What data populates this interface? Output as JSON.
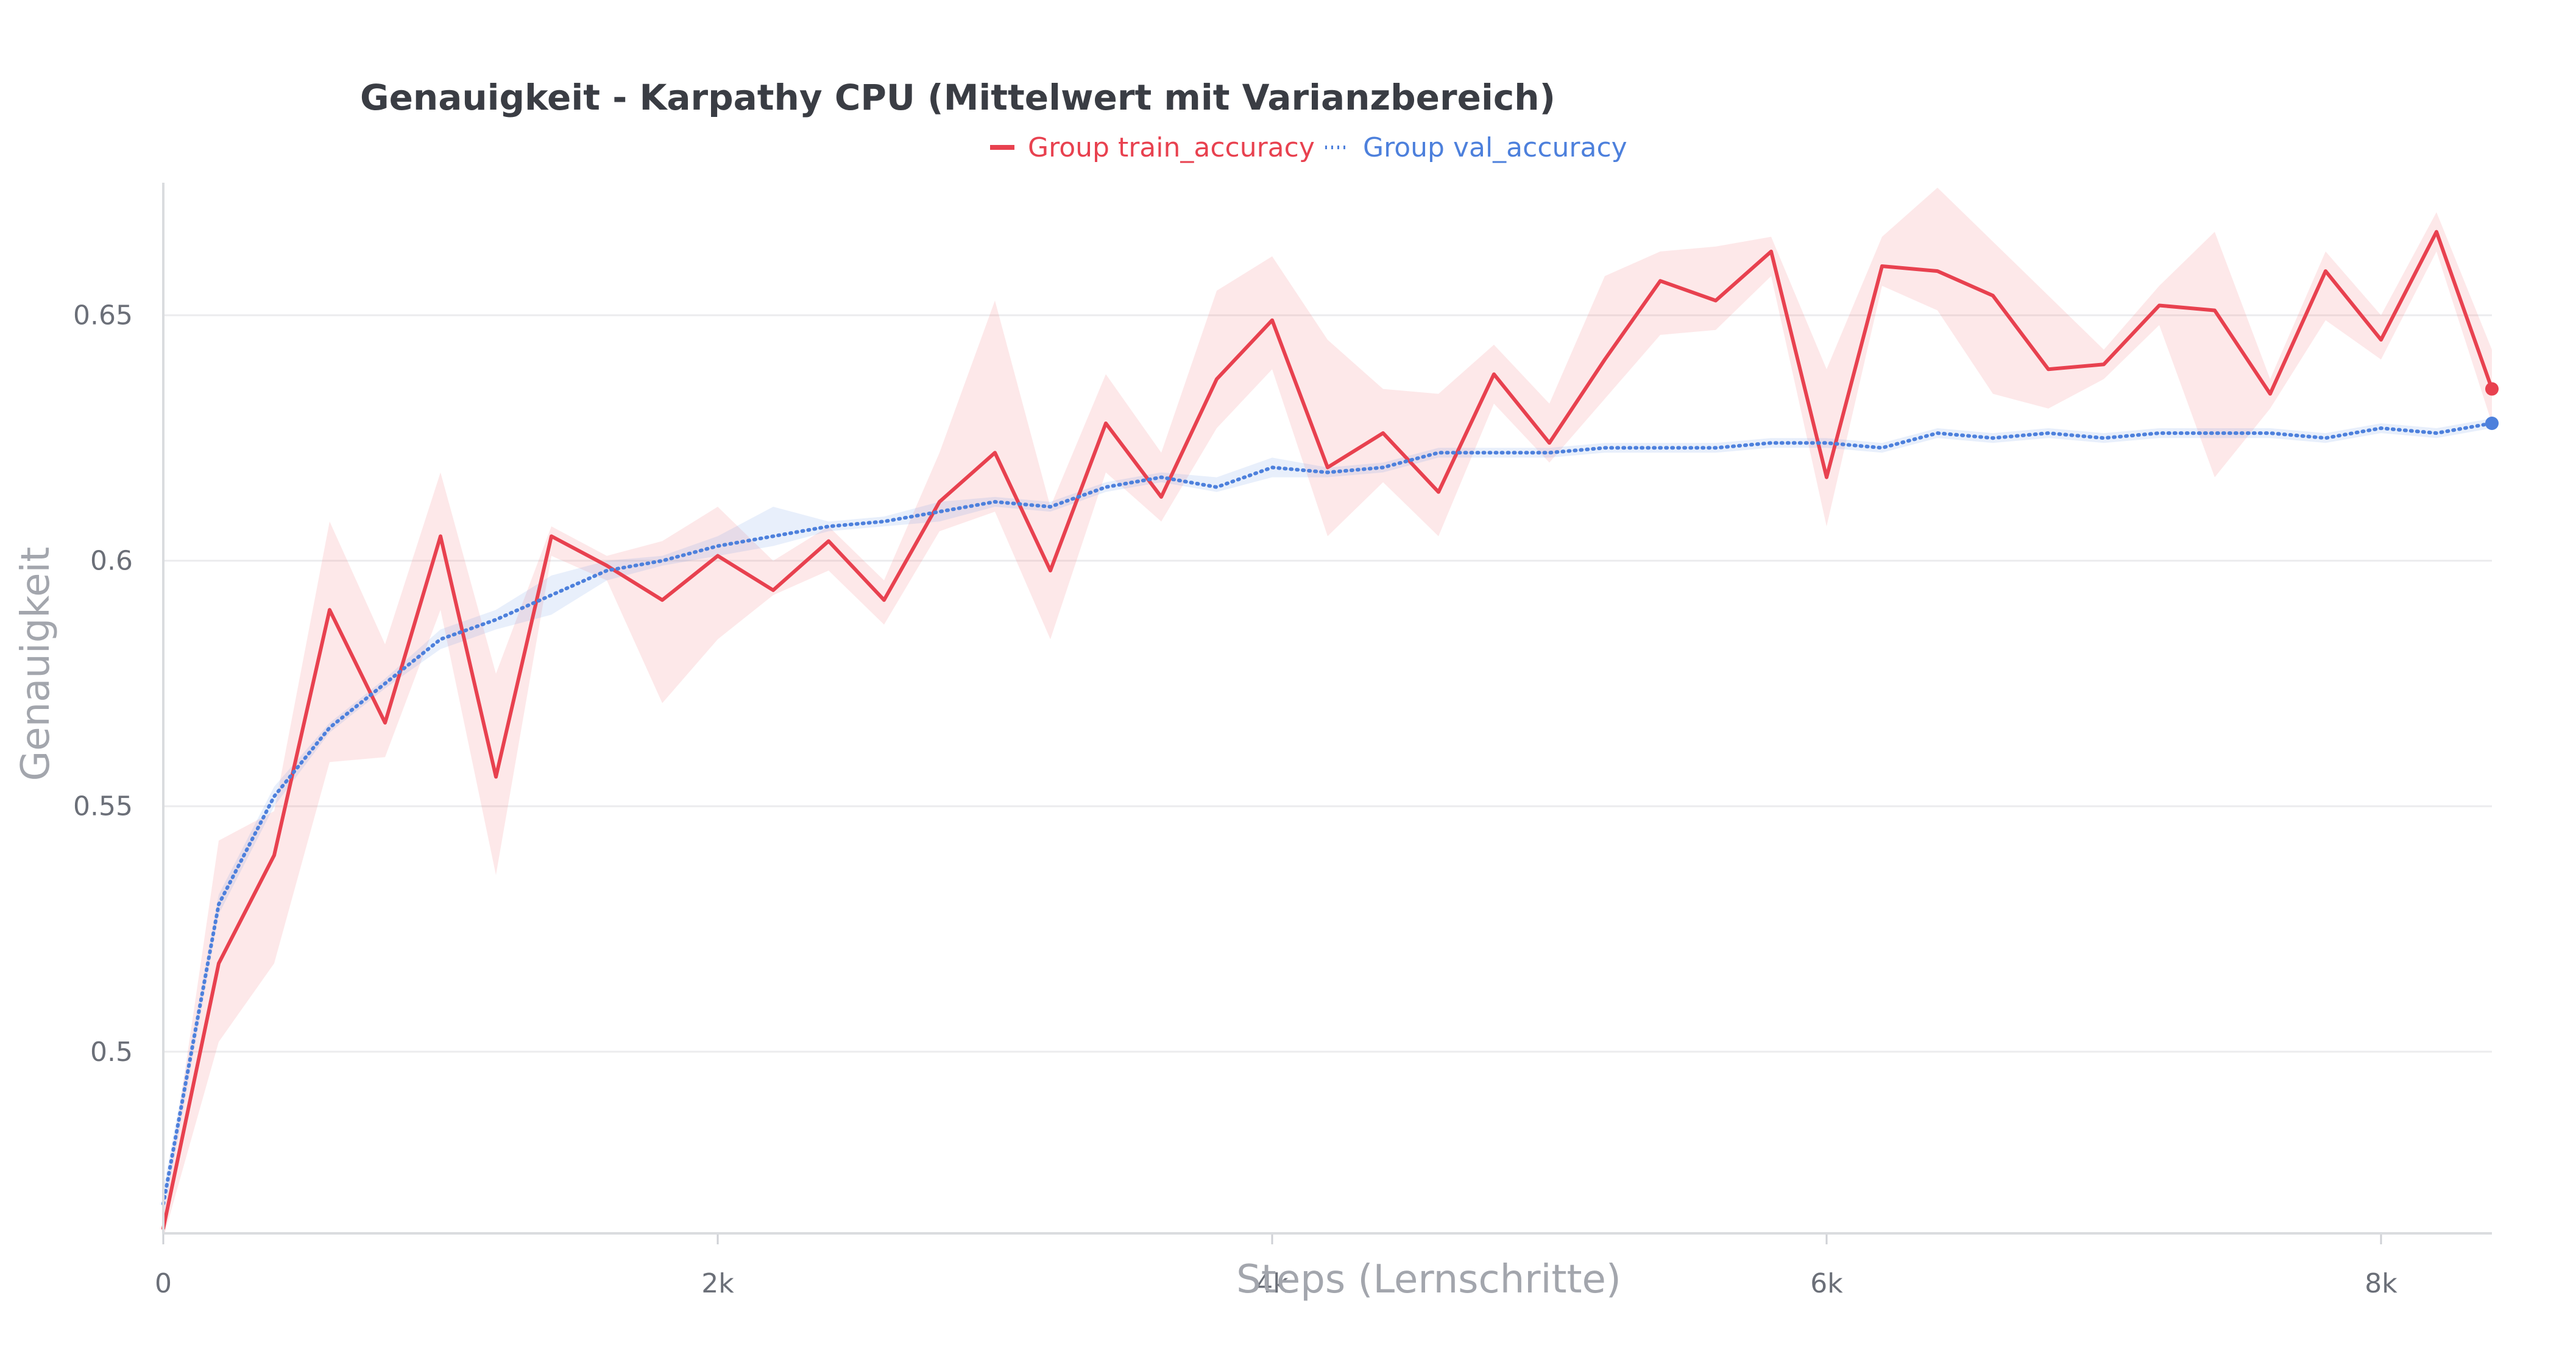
{
  "chart_data": {
    "type": "line",
    "title": "Genauigkeit - Karpathy CPU (Mittelwert mit Varianzbereich)",
    "xlabel": "Steps (Lernschritte)",
    "ylabel": "Genauigkeit",
    "xlim": [
      0,
      8400
    ],
    "ylim": [
      0.463,
      0.677
    ],
    "xticks": [
      {
        "value": 0,
        "label": "0"
      },
      {
        "value": 2000,
        "label": "2k"
      },
      {
        "value": 4000,
        "label": "4k"
      },
      {
        "value": 6000,
        "label": "6k"
      },
      {
        "value": 8000,
        "label": "8k"
      }
    ],
    "yticks": [
      {
        "value": 0.5,
        "label": "0.5"
      },
      {
        "value": 0.55,
        "label": "0.55"
      },
      {
        "value": 0.6,
        "label": "0.6"
      },
      {
        "value": 0.65,
        "label": "0.65"
      }
    ],
    "grid": "horizontal",
    "legend_position": "top-center",
    "series": [
      {
        "name": "Group train_accuracy",
        "color": "#e8414f",
        "style": "solid",
        "x": [
          0,
          200,
          400,
          600,
          800,
          1000,
          1200,
          1400,
          1600,
          1800,
          2000,
          2200,
          2400,
          2600,
          2800,
          3000,
          3200,
          3400,
          3600,
          3800,
          4000,
          4200,
          4400,
          4600,
          4800,
          5000,
          5200,
          5400,
          5600,
          5800,
          6000,
          6200,
          6400,
          6600,
          6800,
          7000,
          7200,
          7400,
          7600,
          7800,
          8000,
          8200,
          8400
        ],
        "y": [
          0.464,
          0.518,
          0.54,
          0.59,
          0.567,
          0.605,
          0.556,
          0.605,
          0.599,
          0.592,
          0.601,
          0.594,
          0.604,
          0.592,
          0.612,
          0.622,
          0.598,
          0.628,
          0.613,
          0.637,
          0.649,
          0.619,
          0.626,
          0.614,
          0.638,
          0.624,
          0.641,
          0.657,
          0.653,
          0.663,
          0.617,
          0.66,
          0.659,
          0.654,
          0.639,
          0.64,
          0.652,
          0.651,
          0.634,
          0.659,
          0.645,
          0.667,
          0.635
        ],
        "upper": [
          0.466,
          0.543,
          0.549,
          0.608,
          0.583,
          0.618,
          0.577,
          0.607,
          0.601,
          0.604,
          0.611,
          0.6,
          0.607,
          0.596,
          0.622,
          0.653,
          0.611,
          0.638,
          0.622,
          0.655,
          0.662,
          0.645,
          0.635,
          0.634,
          0.644,
          0.632,
          0.658,
          0.663,
          0.664,
          0.666,
          0.639,
          0.666,
          0.676,
          0.665,
          0.654,
          0.643,
          0.656,
          0.667,
          0.637,
          0.663,
          0.65,
          0.671,
          0.643
        ],
        "lower": [
          0.462,
          0.502,
          0.518,
          0.559,
          0.56,
          0.59,
          0.536,
          0.601,
          0.596,
          0.571,
          0.584,
          0.593,
          0.598,
          0.587,
          0.606,
          0.61,
          0.584,
          0.618,
          0.608,
          0.627,
          0.639,
          0.605,
          0.616,
          0.605,
          0.632,
          0.62,
          0.633,
          0.646,
          0.647,
          0.658,
          0.607,
          0.656,
          0.651,
          0.634,
          0.631,
          0.637,
          0.648,
          0.617,
          0.631,
          0.649,
          0.641,
          0.663,
          0.628
        ]
      },
      {
        "name": "Group val_accuracy",
        "color": "#4d80dc",
        "style": "dotted",
        "x": [
          0,
          200,
          400,
          600,
          800,
          1000,
          1200,
          1400,
          1600,
          1800,
          2000,
          2200,
          2400,
          2600,
          2800,
          3000,
          3200,
          3400,
          3600,
          3800,
          4000,
          4200,
          4400,
          4600,
          4800,
          5000,
          5200,
          5400,
          5600,
          5800,
          6000,
          6200,
          6400,
          6600,
          6800,
          7000,
          7200,
          7400,
          7600,
          7800,
          8000,
          8200,
          8400
        ],
        "y": [
          0.469,
          0.53,
          0.552,
          0.566,
          0.575,
          0.584,
          0.588,
          0.593,
          0.598,
          0.6,
          0.603,
          0.605,
          0.607,
          0.608,
          0.61,
          0.612,
          0.611,
          0.615,
          0.617,
          0.615,
          0.619,
          0.618,
          0.619,
          0.622,
          0.622,
          0.622,
          0.623,
          0.623,
          0.623,
          0.624,
          0.624,
          0.623,
          0.626,
          0.625,
          0.626,
          0.625,
          0.626,
          0.626,
          0.626,
          0.625,
          0.627,
          0.626,
          0.628
        ],
        "upper": [
          0.472,
          0.532,
          0.554,
          0.567,
          0.576,
          0.586,
          0.59,
          0.597,
          0.6,
          0.601,
          0.605,
          0.611,
          0.608,
          0.609,
          0.612,
          0.613,
          0.612,
          0.616,
          0.618,
          0.617,
          0.621,
          0.619,
          0.62,
          0.623,
          0.623,
          0.623,
          0.624,
          0.624,
          0.624,
          0.625,
          0.625,
          0.624,
          0.627,
          0.626,
          0.627,
          0.626,
          0.627,
          0.627,
          0.627,
          0.626,
          0.628,
          0.627,
          0.629
        ],
        "lower": [
          0.466,
          0.528,
          0.55,
          0.565,
          0.574,
          0.582,
          0.586,
          0.589,
          0.596,
          0.599,
          0.601,
          0.603,
          0.606,
          0.607,
          0.608,
          0.611,
          0.61,
          0.614,
          0.616,
          0.614,
          0.617,
          0.617,
          0.618,
          0.621,
          0.621,
          0.621,
          0.622,
          0.622,
          0.622,
          0.623,
          0.623,
          0.622,
          0.625,
          0.624,
          0.625,
          0.624,
          0.625,
          0.625,
          0.625,
          0.624,
          0.626,
          0.625,
          0.627
        ]
      }
    ]
  }
}
